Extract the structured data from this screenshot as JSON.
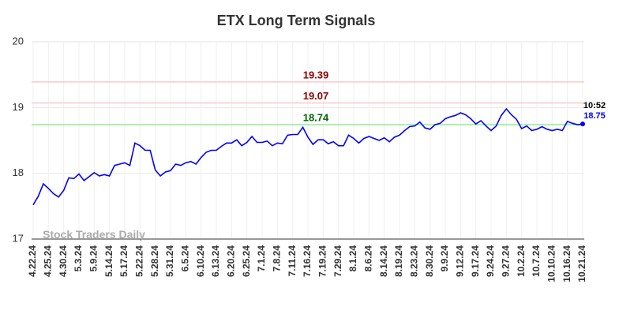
{
  "chart_data": {
    "type": "line",
    "title": "ETX Long Term Signals",
    "categories": [
      "4.22.24",
      null,
      null,
      "4.25.24",
      null,
      null,
      "4.30.24",
      null,
      null,
      "5.3.24",
      null,
      null,
      "5.9.24",
      null,
      null,
      "5.14.24",
      null,
      null,
      "5.17.24",
      null,
      null,
      "5.22.24",
      null,
      null,
      "5.28.24",
      null,
      null,
      "5.31.24",
      null,
      null,
      "6.5.24",
      null,
      null,
      "6.10.24",
      null,
      null,
      "6.13.24",
      null,
      null,
      "6.20.24",
      null,
      null,
      "6.25.24",
      null,
      null,
      "7.1.24",
      null,
      null,
      "7.8.24",
      null,
      null,
      "7.11.24",
      null,
      null,
      "7.16.24",
      null,
      null,
      "7.19.24",
      null,
      null,
      "7.29.24",
      null,
      null,
      "8.1.24",
      null,
      null,
      "8.6.24",
      null,
      null,
      "8.14.24",
      null,
      null,
      "8.19.24",
      null,
      null,
      "8.23.24",
      null,
      null,
      "8.30.24",
      null,
      null,
      "9.9.24",
      null,
      null,
      "9.12.24",
      null,
      null,
      "9.17.24",
      null,
      null,
      "9.24.24",
      null,
      null,
      "9.27.24",
      null,
      null,
      "10.2.24",
      null,
      null,
      "10.7.24",
      null,
      null,
      "10.10.24",
      null,
      null,
      "10.16.24",
      null,
      null,
      "10.21.24"
    ],
    "series": [
      {
        "name": "ETX",
        "color": "#0000ff",
        "values": [
          17.52,
          17.65,
          17.84,
          17.77,
          17.69,
          17.64,
          17.74,
          17.93,
          17.92,
          17.99,
          17.89,
          17.95,
          18.01,
          17.96,
          17.98,
          17.96,
          18.12,
          18.14,
          18.16,
          18.12,
          18.46,
          18.42,
          18.35,
          18.35,
          18.05,
          17.96,
          18.02,
          18.04,
          18.14,
          18.12,
          18.16,
          18.18,
          18.14,
          18.24,
          18.32,
          18.35,
          18.35,
          18.41,
          18.46,
          18.46,
          18.51,
          18.42,
          18.47,
          18.56,
          18.47,
          18.47,
          18.49,
          18.42,
          18.46,
          18.45,
          18.58,
          18.59,
          18.59,
          18.7,
          18.55,
          18.44,
          18.51,
          18.51,
          18.45,
          18.48,
          18.42,
          18.42,
          18.58,
          18.53,
          18.46,
          18.53,
          18.56,
          18.53,
          18.5,
          18.54,
          18.48,
          18.55,
          18.58,
          18.65,
          18.71,
          18.72,
          18.78,
          18.69,
          18.67,
          18.74,
          18.76,
          18.83,
          18.86,
          18.88,
          18.92,
          18.89,
          18.83,
          18.75,
          18.8,
          18.72,
          18.65,
          18.72,
          18.88,
          18.98,
          18.89,
          18.82,
          18.68,
          18.72,
          18.65,
          18.67,
          18.71,
          18.67,
          18.65,
          18.67,
          18.65,
          18.79,
          18.76,
          18.74,
          18.75
        ]
      }
    ],
    "reference_lines": [
      {
        "value": 19.39,
        "line_color": "#ffc8c8",
        "label_color": "#8b0000"
      },
      {
        "value": 19.07,
        "line_color": "#ffc8c8",
        "label_color": "#8b0000"
      },
      {
        "value": 18.74,
        "line_color": "#90ee90",
        "label_color": "#006400"
      }
    ],
    "last_time": "10:52",
    "watermark": "Stock Traders Daily",
    "ylim": [
      17,
      20
    ],
    "yticks": [
      17,
      18,
      19,
      20
    ],
    "grid": true
  }
}
